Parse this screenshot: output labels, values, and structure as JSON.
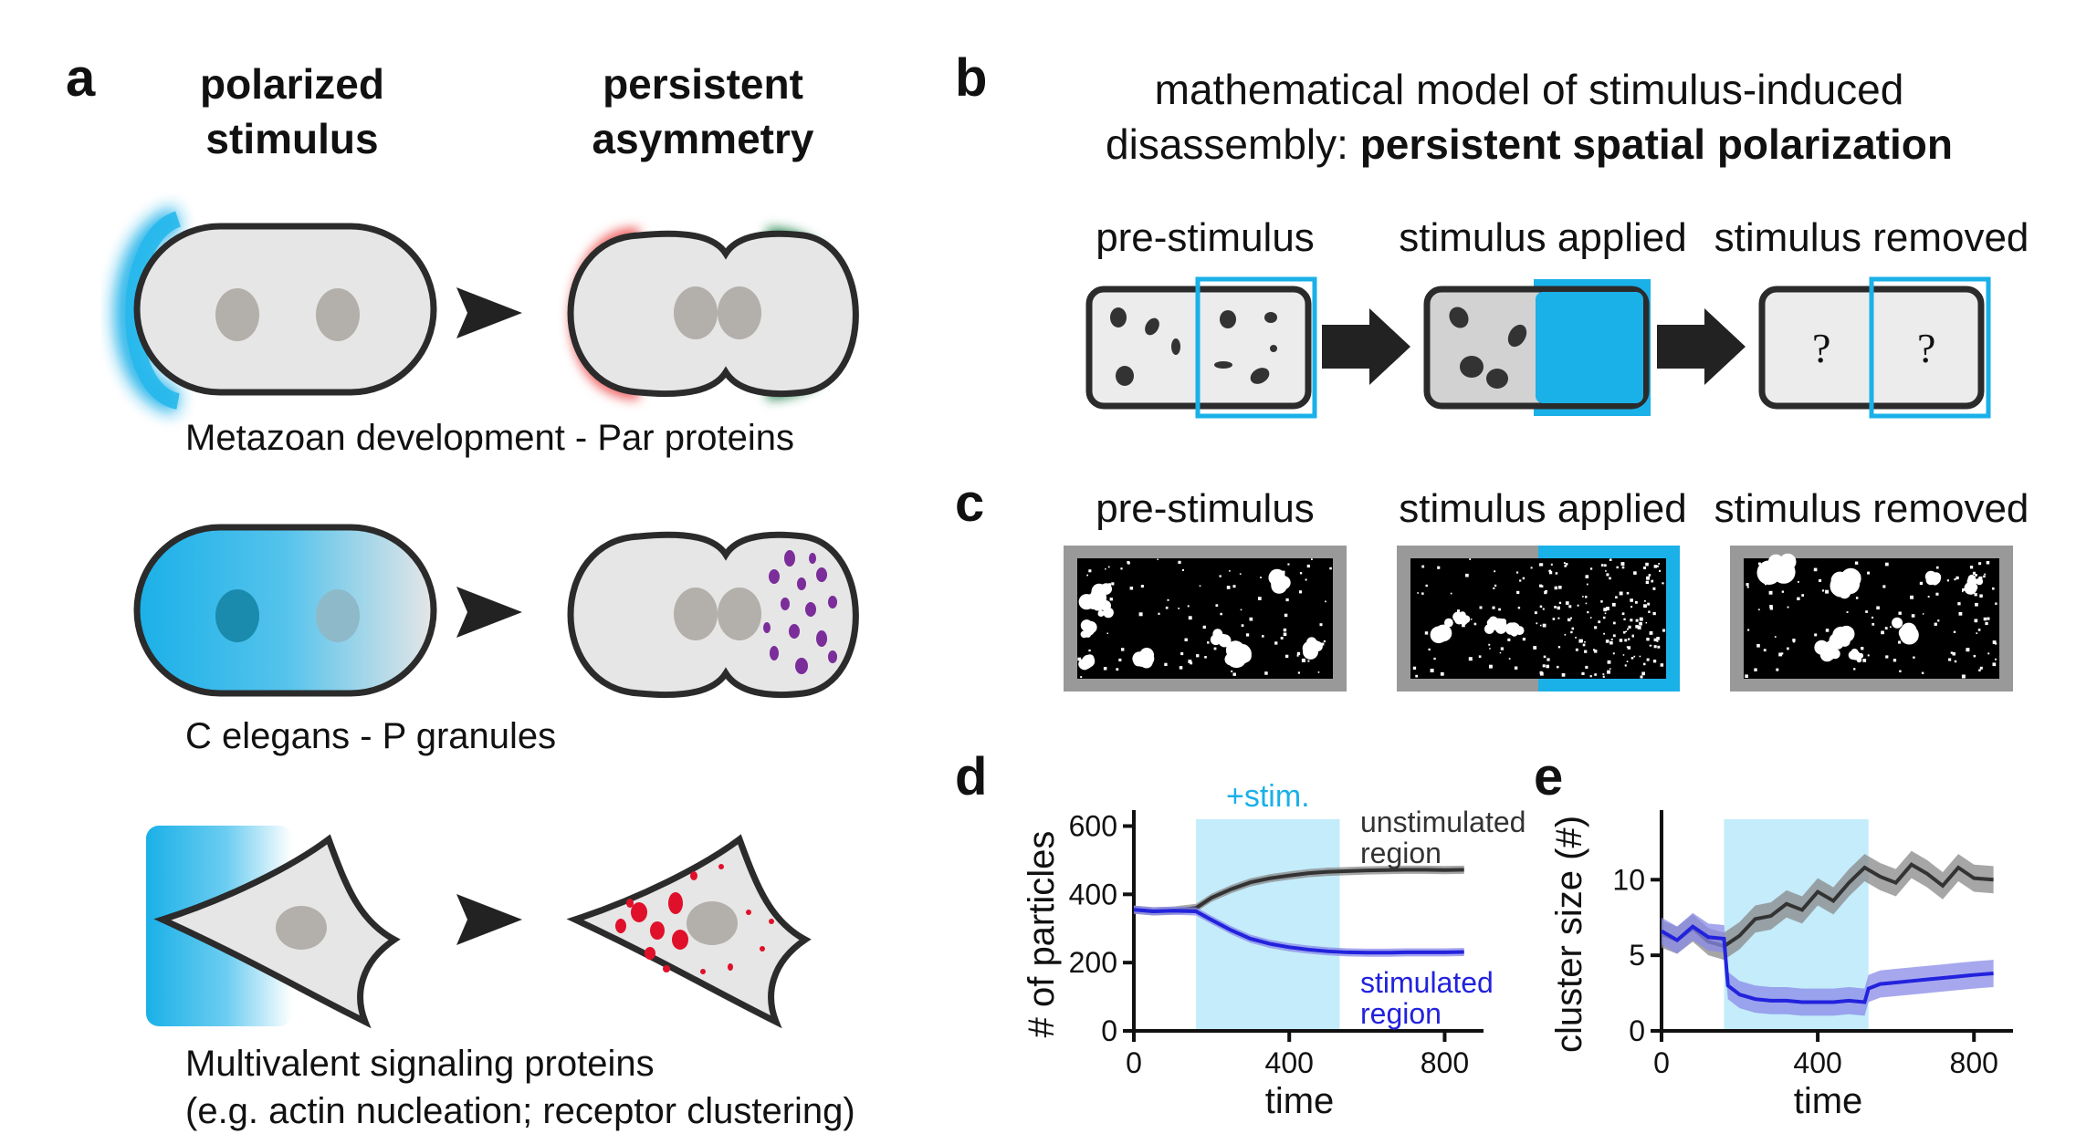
{
  "panel_a": {
    "label": "a",
    "col1_line1": "polarized",
    "col1_line2": "stimulus",
    "col2_line1": "persistent",
    "col2_line2": "asymmetry",
    "caption1": "Metazoan development - Par proteins",
    "caption2": "C elegans - P granules",
    "caption3_line1": "Multivalent signaling proteins",
    "caption3_line2": "(e.g. actin nucleation; receptor clustering)"
  },
  "panel_b": {
    "label": "b",
    "title_line1": "mathematical model of stimulus-induced",
    "title_line2_plain": "disassembly: ",
    "title_line2_bold": "persistent spatial polarization",
    "stages": [
      "pre-stimulus",
      "stimulus applied",
      "stimulus removed"
    ],
    "unknown_mark": "?"
  },
  "panel_c": {
    "label": "c",
    "stages": [
      "pre-stimulus",
      "stimulus applied",
      "stimulus removed"
    ]
  },
  "colors": {
    "stimulus": "#1ab0e8",
    "stimulus_band": "#c4ecfa",
    "unstimulated": "#333333",
    "stimulated": "#2222dd",
    "par_red": "#f06060",
    "par_green": "#2e8b57",
    "granule_purple": "#7b2d9a",
    "cluster_red": "#e0102a"
  },
  "chart_data": [
    {
      "panel": "d",
      "type": "line",
      "xlabel": "time",
      "ylabel": "# of particles",
      "xlim": [
        0,
        900
      ],
      "ylim": [
        0,
        620
      ],
      "xticks": [
        0,
        400,
        800
      ],
      "yticks": [
        0,
        200,
        400,
        600
      ],
      "stimulus_window": [
        160,
        530
      ],
      "stimulus_label": "+stim.",
      "series": [
        {
          "name": "unstimulated region",
          "x": [
            0,
            50,
            100,
            160,
            200,
            250,
            300,
            350,
            400,
            450,
            500,
            550,
            600,
            650,
            700,
            750,
            800,
            850
          ],
          "y": [
            355,
            350,
            352,
            360,
            390,
            415,
            435,
            447,
            455,
            462,
            466,
            468,
            470,
            471,
            472,
            472,
            471,
            472
          ]
        },
        {
          "name": "stimulated region",
          "x": [
            0,
            50,
            100,
            160,
            200,
            250,
            300,
            350,
            400,
            450,
            500,
            550,
            600,
            650,
            700,
            750,
            800,
            850
          ],
          "y": [
            355,
            350,
            352,
            350,
            325,
            295,
            270,
            255,
            245,
            238,
            233,
            230,
            229,
            229,
            230,
            230,
            230,
            231
          ]
        }
      ]
    },
    {
      "panel": "e",
      "type": "line",
      "xlabel": "time",
      "ylabel": "cluster size (#)",
      "xlim": [
        0,
        900
      ],
      "ylim": [
        0,
        14
      ],
      "xticks": [
        0,
        400,
        800
      ],
      "yticks": [
        0,
        5,
        10
      ],
      "stimulus_window": [
        160,
        530
      ],
      "series": [
        {
          "name": "unstimulated region",
          "x": [
            0,
            40,
            80,
            120,
            160,
            200,
            240,
            280,
            320,
            360,
            400,
            440,
            480,
            520,
            560,
            600,
            640,
            680,
            720,
            760,
            800,
            850
          ],
          "y": [
            6.4,
            6.0,
            6.8,
            5.9,
            5.6,
            6.3,
            7.4,
            7.6,
            8.4,
            8.0,
            9.2,
            8.6,
            9.8,
            10.8,
            10.2,
            9.8,
            11.0,
            10.4,
            9.6,
            10.8,
            10.1,
            10.0
          ]
        },
        {
          "name": "stimulated region",
          "x": [
            0,
            40,
            80,
            120,
            160,
            170,
            200,
            240,
            280,
            320,
            360,
            400,
            440,
            480,
            520,
            530,
            560,
            600,
            640,
            680,
            720,
            760,
            800,
            850
          ],
          "y": [
            6.6,
            6.0,
            6.9,
            6.2,
            6.1,
            3.0,
            2.4,
            2.1,
            2.0,
            2.0,
            1.9,
            1.9,
            1.9,
            2.0,
            1.9,
            2.8,
            3.1,
            3.2,
            3.3,
            3.4,
            3.5,
            3.6,
            3.7,
            3.8
          ]
        }
      ]
    }
  ]
}
